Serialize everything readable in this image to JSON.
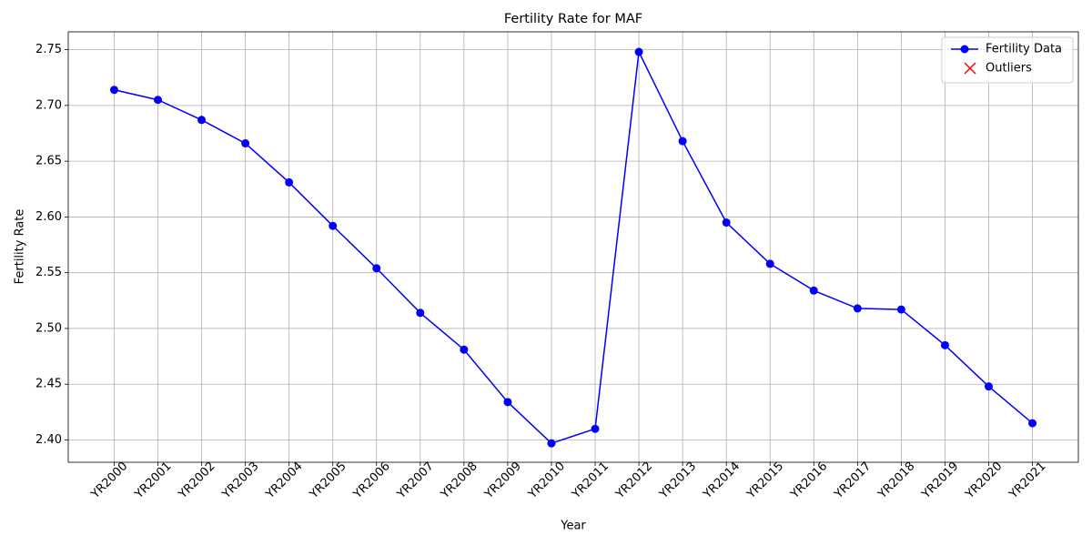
{
  "chart_data": {
    "type": "line",
    "title": "Fertility Rate for MAF",
    "xlabel": "Year",
    "ylabel": "Fertility Rate",
    "categories": [
      "YR2000",
      "YR2001",
      "YR2002",
      "YR2003",
      "YR2004",
      "YR2005",
      "YR2006",
      "YR2007",
      "YR2008",
      "YR2009",
      "YR2010",
      "YR2011",
      "YR2012",
      "YR2013",
      "YR2014",
      "YR2015",
      "YR2016",
      "YR2017",
      "YR2018",
      "YR2019",
      "YR2020",
      "YR2021"
    ],
    "series": [
      {
        "name": "Fertility Data",
        "color": "#0000ff",
        "marker": "o",
        "values": [
          2.714,
          2.705,
          2.687,
          2.666,
          2.631,
          2.592,
          2.554,
          2.514,
          2.481,
          2.434,
          2.397,
          2.41,
          2.748,
          2.668,
          2.595,
          2.558,
          2.534,
          2.518,
          2.517,
          2.485,
          2.448,
          2.415
        ]
      },
      {
        "name": "Outliers",
        "color": "#ff0000",
        "marker": "x",
        "values": [
          null,
          null,
          null,
          null,
          null,
          null,
          null,
          null,
          null,
          null,
          null,
          null,
          null,
          null,
          null,
          null,
          null,
          null,
          null,
          null,
          null,
          null
        ]
      }
    ],
    "ylim": [
      2.38,
      2.766
    ],
    "yticks": [
      {
        "value": 2.4,
        "label": "2.40"
      },
      {
        "value": 2.45,
        "label": "2.45"
      },
      {
        "value": 2.5,
        "label": "2.50"
      },
      {
        "value": 2.55,
        "label": "2.55"
      },
      {
        "value": 2.6,
        "label": "2.60"
      },
      {
        "value": 2.65,
        "label": "2.65"
      },
      {
        "value": 2.7,
        "label": "2.70"
      },
      {
        "value": 2.75,
        "label": "2.75"
      }
    ],
    "grid": true,
    "legend": "upper right"
  }
}
